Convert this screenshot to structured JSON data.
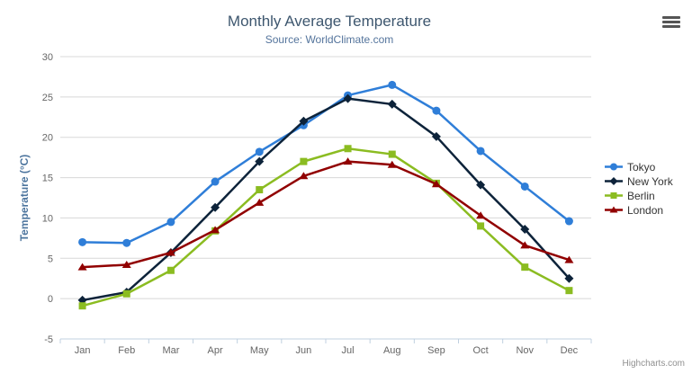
{
  "header": {
    "title": "Monthly Average Temperature",
    "subtitle": "Source: WorldClimate.com"
  },
  "credits": {
    "label": "Highcharts.com"
  },
  "export_menu": {
    "icon": "hamburger-icon"
  },
  "chart_data": {
    "type": "line",
    "title": "Monthly Average Temperature",
    "subtitle": "Source: WorldClimate.com",
    "xlabel": "",
    "ylabel": "Temperature (°C)",
    "ylim": [
      -5,
      30
    ],
    "ytick_step": 5,
    "grid": true,
    "legend_position": "right",
    "categories": [
      "Jan",
      "Feb",
      "Mar",
      "Apr",
      "May",
      "Jun",
      "Jul",
      "Aug",
      "Sep",
      "Oct",
      "Nov",
      "Dec"
    ],
    "series": [
      {
        "name": "Tokyo",
        "color": "#2f7ed8",
        "marker": "circle",
        "values": [
          7.0,
          6.9,
          9.5,
          14.5,
          18.2,
          21.5,
          25.2,
          26.5,
          23.3,
          18.3,
          13.9,
          9.6
        ]
      },
      {
        "name": "New York",
        "color": "#0d233a",
        "marker": "diamond",
        "values": [
          -0.2,
          0.8,
          5.7,
          11.3,
          17.0,
          22.0,
          24.8,
          24.1,
          20.1,
          14.1,
          8.6,
          2.5
        ]
      },
      {
        "name": "Berlin",
        "color": "#8bbc21",
        "marker": "square",
        "values": [
          -0.9,
          0.6,
          3.5,
          8.4,
          13.5,
          17.0,
          18.6,
          17.9,
          14.3,
          9.0,
          3.9,
          1.0
        ]
      },
      {
        "name": "London",
        "color": "#910000",
        "marker": "triangle",
        "values": [
          3.9,
          4.2,
          5.7,
          8.5,
          11.9,
          15.2,
          17.0,
          16.6,
          14.2,
          10.3,
          6.6,
          4.8
        ]
      }
    ],
    "style": {
      "grid_color": "#D8D8D8",
      "axis_line_color": "#C0D0E0",
      "label_color": "#666666"
    }
  }
}
